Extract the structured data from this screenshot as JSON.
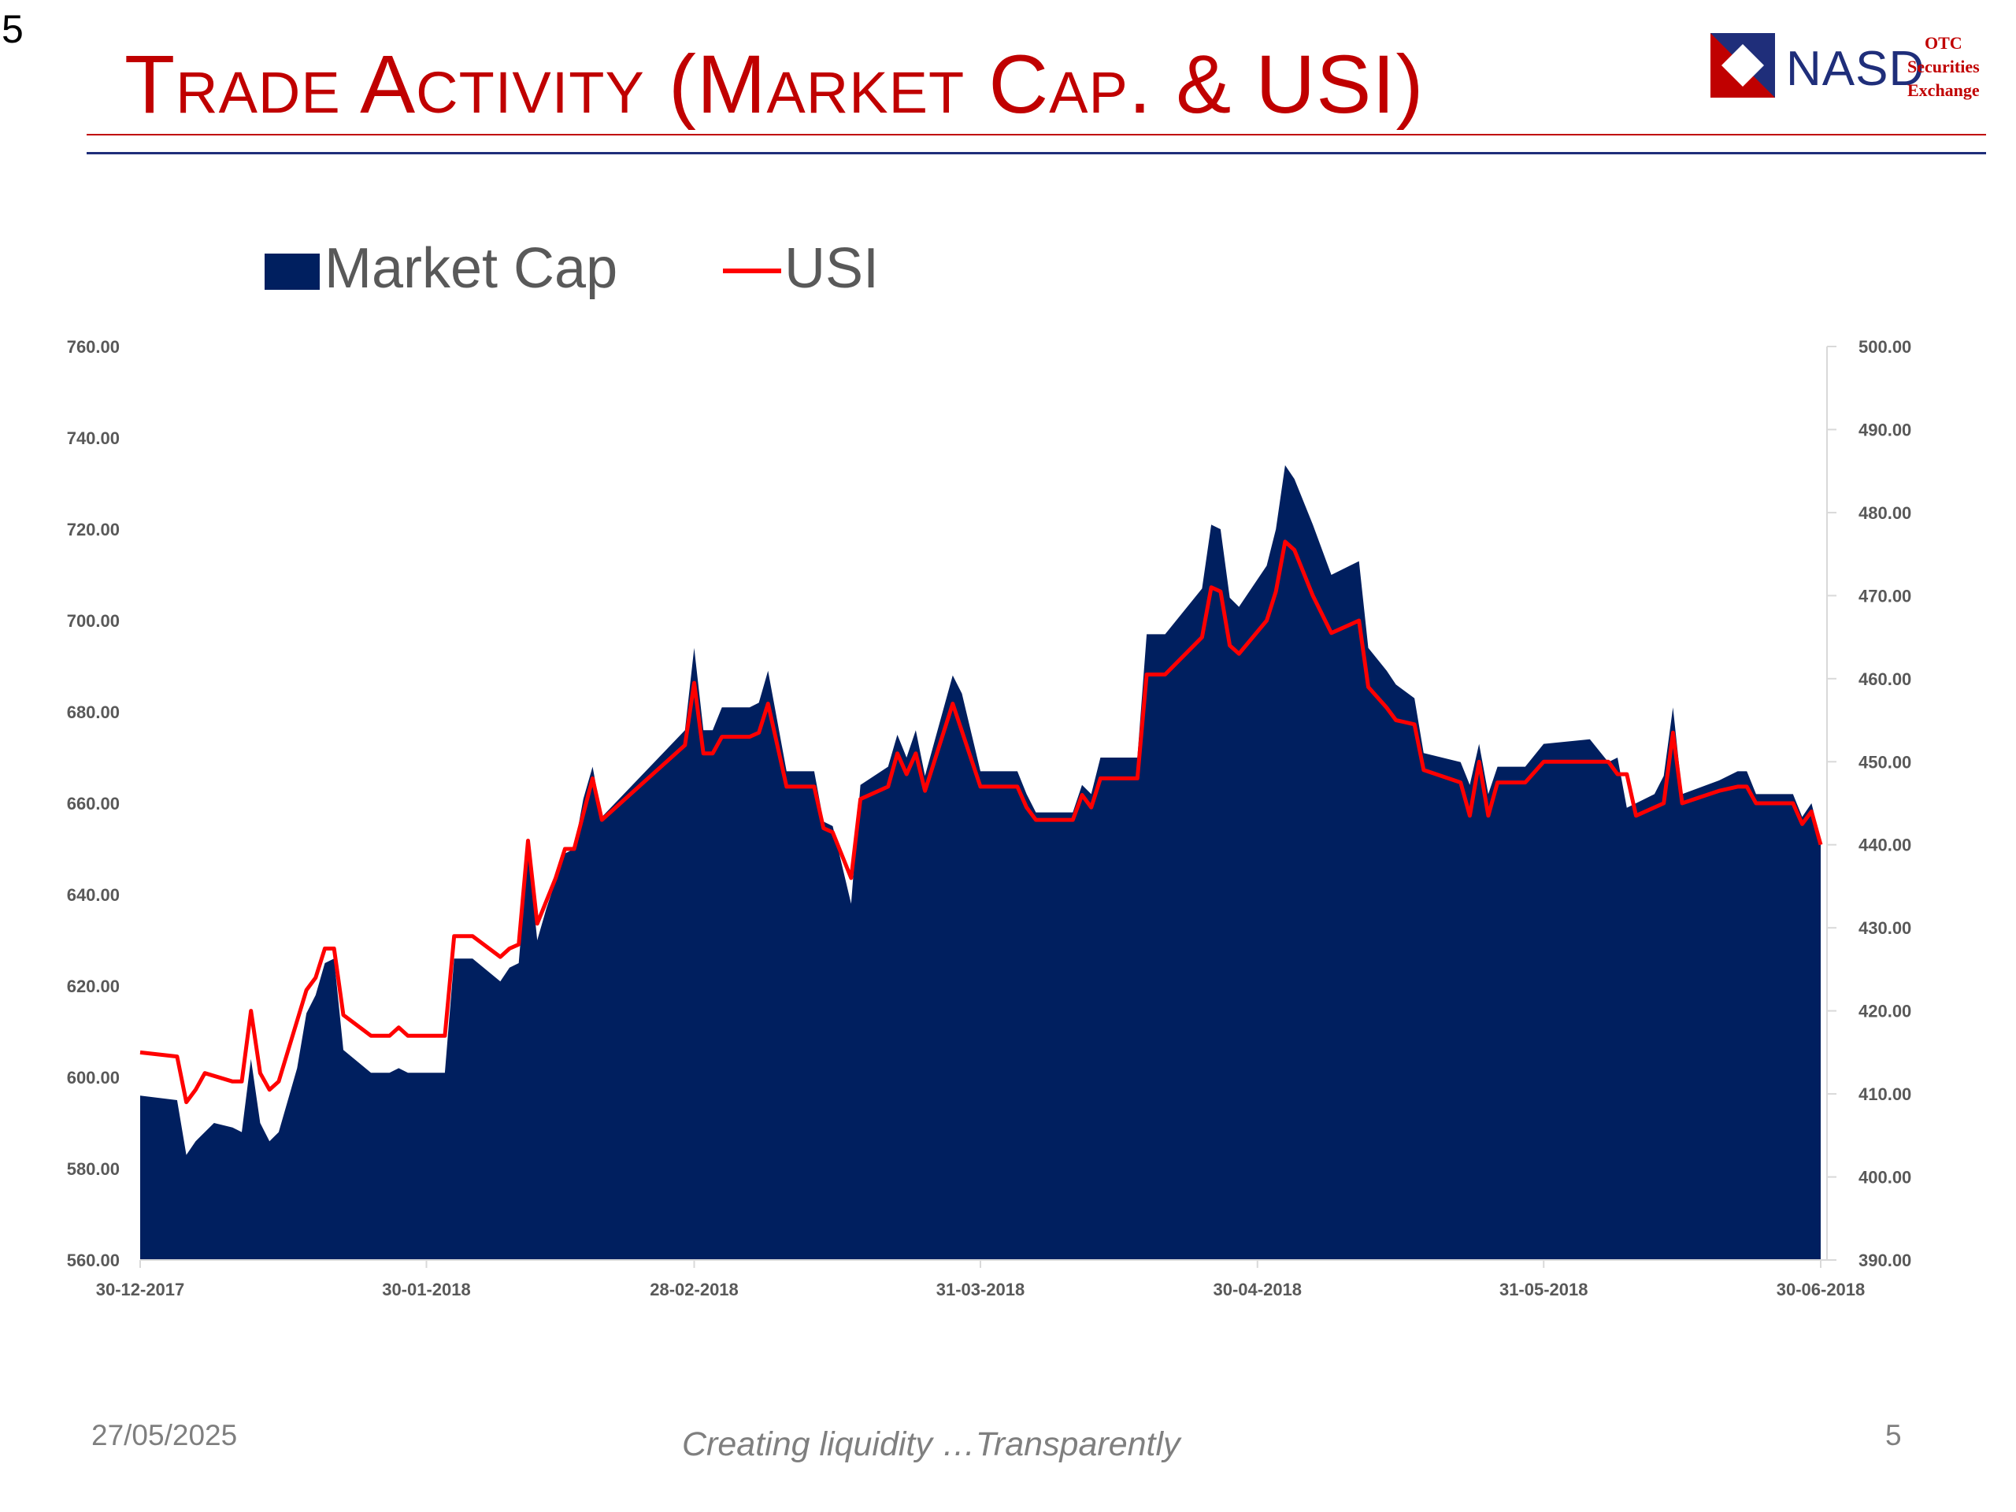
{
  "slide": {
    "corner_number": "5",
    "title": "Trade Activity (Market Cap. & USI)",
    "footer_date": "27/05/2025",
    "footer_tagline": "Creating liquidity …Transparently",
    "footer_page": "5"
  },
  "logo": {
    "name": "NASD",
    "line1": "OTC",
    "line2": "Securities",
    "line3": "Exchange"
  },
  "colors": {
    "title": "#c00000",
    "market_cap_fill": "#001f5f",
    "usi_line": "#ff0000",
    "tick_text": "#595959"
  },
  "chart_data": {
    "type": "area",
    "legend": [
      {
        "name": "Market Cap",
        "type": "area"
      },
      {
        "name": "USI",
        "type": "line"
      }
    ],
    "legend_position": "top-left",
    "grid": false,
    "x_tick_labels": [
      "30-12-2017",
      "30-01-2018",
      "28-02-2018",
      "31-03-2018",
      "30-04-2018",
      "31-05-2018",
      "30-06-2018"
    ],
    "y_left": {
      "min": 560,
      "max": 760,
      "step": 20,
      "tick_labels": [
        "560.00",
        "580.00",
        "600.00",
        "620.00",
        "640.00",
        "660.00",
        "680.00",
        "700.00",
        "720.00",
        "740.00",
        "760.00"
      ]
    },
    "y_right": {
      "min": 390,
      "max": 500,
      "step": 10,
      "tick_labels": [
        "390.00",
        "400.00",
        "410.00",
        "420.00",
        "430.00",
        "440.00",
        "450.00",
        "460.00",
        "470.00",
        "480.00",
        "490.00",
        "500.00"
      ]
    },
    "x_start": "2017-12-30",
    "x_end": "2018-06-30",
    "series": [
      {
        "name": "Market Cap",
        "axis": "left",
        "points": [
          [
            "2017-12-30",
            596
          ],
          [
            "2018-01-03",
            595
          ],
          [
            "2018-01-04",
            583
          ],
          [
            "2018-01-05",
            586
          ],
          [
            "2018-01-07",
            590
          ],
          [
            "2018-01-09",
            589
          ],
          [
            "2018-01-10",
            588
          ],
          [
            "2018-01-11",
            604
          ],
          [
            "2018-01-12",
            590
          ],
          [
            "2018-01-13",
            586
          ],
          [
            "2018-01-14",
            588
          ],
          [
            "2018-01-16",
            602
          ],
          [
            "2018-01-17",
            614
          ],
          [
            "2018-01-18",
            618
          ],
          [
            "2018-01-19",
            625
          ],
          [
            "2018-01-20",
            626
          ],
          [
            "2018-01-21",
            606
          ],
          [
            "2018-01-24",
            601
          ],
          [
            "2018-01-26",
            601
          ],
          [
            "2018-01-27",
            602
          ],
          [
            "2018-01-28",
            601
          ],
          [
            "2018-01-30",
            601
          ],
          [
            "2018-02-01",
            601
          ],
          [
            "2018-02-02",
            626
          ],
          [
            "2018-02-04",
            626
          ],
          [
            "2018-02-07",
            621
          ],
          [
            "2018-02-08",
            624
          ],
          [
            "2018-02-09",
            625
          ],
          [
            "2018-02-10",
            650
          ],
          [
            "2018-02-11",
            630
          ],
          [
            "2018-02-12",
            637
          ],
          [
            "2018-02-14",
            649
          ],
          [
            "2018-02-15",
            650
          ],
          [
            "2018-02-16",
            661
          ],
          [
            "2018-02-17",
            668
          ],
          [
            "2018-02-18",
            657
          ],
          [
            "2018-02-27",
            676
          ],
          [
            "2018-02-28",
            694
          ],
          [
            "2018-03-01",
            676
          ],
          [
            "2018-03-02",
            676
          ],
          [
            "2018-03-03",
            681
          ],
          [
            "2018-03-06",
            681
          ],
          [
            "2018-03-07",
            682
          ],
          [
            "2018-03-08",
            689
          ],
          [
            "2018-03-10",
            667
          ],
          [
            "2018-03-13",
            667
          ],
          [
            "2018-03-14",
            656
          ],
          [
            "2018-03-15",
            655
          ],
          [
            "2018-03-17",
            638
          ],
          [
            "2018-03-18",
            664
          ],
          [
            "2018-03-21",
            668
          ],
          [
            "2018-03-22",
            675
          ],
          [
            "2018-03-23",
            670
          ],
          [
            "2018-03-24",
            676
          ],
          [
            "2018-03-25",
            666
          ],
          [
            "2018-03-28",
            688
          ],
          [
            "2018-03-29",
            684
          ],
          [
            "2018-03-31",
            667
          ],
          [
            "2018-04-04",
            667
          ],
          [
            "2018-04-05",
            662
          ],
          [
            "2018-04-06",
            658
          ],
          [
            "2018-04-10",
            658
          ],
          [
            "2018-04-11",
            664
          ],
          [
            "2018-04-12",
            662
          ],
          [
            "2018-04-13",
            670
          ],
          [
            "2018-04-17",
            670
          ],
          [
            "2018-04-18",
            697
          ],
          [
            "2018-04-20",
            697
          ],
          [
            "2018-04-24",
            707
          ],
          [
            "2018-04-25",
            721
          ],
          [
            "2018-04-26",
            720
          ],
          [
            "2018-04-27",
            705
          ],
          [
            "2018-04-28",
            703
          ],
          [
            "2018-05-01",
            712
          ],
          [
            "2018-05-02",
            720
          ],
          [
            "2018-05-03",
            734
          ],
          [
            "2018-05-04",
            731
          ],
          [
            "2018-05-06",
            721
          ],
          [
            "2018-05-08",
            710
          ],
          [
            "2018-05-10",
            712
          ],
          [
            "2018-05-11",
            713
          ],
          [
            "2018-05-12",
            694
          ],
          [
            "2018-05-14",
            689
          ],
          [
            "2018-05-15",
            686
          ],
          [
            "2018-05-17",
            683
          ],
          [
            "2018-05-18",
            671
          ],
          [
            "2018-05-22",
            669
          ],
          [
            "2018-05-23",
            664
          ],
          [
            "2018-05-24",
            673
          ],
          [
            "2018-05-25",
            662
          ],
          [
            "2018-05-26",
            668
          ],
          [
            "2018-05-29",
            668
          ],
          [
            "2018-05-31",
            673
          ],
          [
            "2018-06-05",
            674
          ],
          [
            "2018-06-07",
            669
          ],
          [
            "2018-06-08",
            670
          ],
          [
            "2018-06-09",
            659
          ],
          [
            "2018-06-12",
            662
          ],
          [
            "2018-06-13",
            666
          ],
          [
            "2018-06-14",
            681
          ],
          [
            "2018-06-15",
            662
          ],
          [
            "2018-06-19",
            665
          ],
          [
            "2018-06-21",
            667
          ],
          [
            "2018-06-22",
            667
          ],
          [
            "2018-06-23",
            662
          ],
          [
            "2018-06-27",
            662
          ],
          [
            "2018-06-28",
            657
          ],
          [
            "2018-06-29",
            660
          ],
          [
            "2018-06-30",
            652
          ]
        ]
      },
      {
        "name": "USI",
        "axis": "right",
        "points": [
          [
            "2017-12-30",
            415
          ],
          [
            "2018-01-03",
            414.5
          ],
          [
            "2018-01-04",
            409
          ],
          [
            "2018-01-05",
            410.5
          ],
          [
            "2018-01-06",
            412.5
          ],
          [
            "2018-01-09",
            411.5
          ],
          [
            "2018-01-10",
            411.5
          ],
          [
            "2018-01-11",
            420
          ],
          [
            "2018-01-12",
            412.5
          ],
          [
            "2018-01-13",
            410.5
          ],
          [
            "2018-01-14",
            411.5
          ],
          [
            "2018-01-17",
            422.5
          ],
          [
            "2018-01-18",
            424
          ],
          [
            "2018-01-19",
            427.5
          ],
          [
            "2018-01-20",
            427.5
          ],
          [
            "2018-01-21",
            419.5
          ],
          [
            "2018-01-24",
            417
          ],
          [
            "2018-01-26",
            417
          ],
          [
            "2018-01-27",
            418
          ],
          [
            "2018-01-28",
            417
          ],
          [
            "2018-02-01",
            417
          ],
          [
            "2018-02-02",
            429
          ],
          [
            "2018-02-04",
            429
          ],
          [
            "2018-02-07",
            426.5
          ],
          [
            "2018-02-08",
            427.5
          ],
          [
            "2018-02-09",
            428
          ],
          [
            "2018-02-10",
            440.5
          ],
          [
            "2018-02-11",
            430.5
          ],
          [
            "2018-02-13",
            436
          ],
          [
            "2018-02-14",
            439.5
          ],
          [
            "2018-02-15",
            439.5
          ],
          [
            "2018-02-17",
            448
          ],
          [
            "2018-02-18",
            443
          ],
          [
            "2018-02-27",
            452
          ],
          [
            "2018-02-28",
            459.5
          ],
          [
            "2018-03-01",
            451
          ],
          [
            "2018-03-02",
            451
          ],
          [
            "2018-03-03",
            453
          ],
          [
            "2018-03-06",
            453
          ],
          [
            "2018-03-07",
            453.5
          ],
          [
            "2018-03-08",
            457
          ],
          [
            "2018-03-10",
            447
          ],
          [
            "2018-03-13",
            447
          ],
          [
            "2018-03-14",
            442
          ],
          [
            "2018-03-15",
            441.5
          ],
          [
            "2018-03-17",
            436
          ],
          [
            "2018-03-18",
            445.5
          ],
          [
            "2018-03-21",
            447
          ],
          [
            "2018-03-22",
            451
          ],
          [
            "2018-03-23",
            448.5
          ],
          [
            "2018-03-24",
            451
          ],
          [
            "2018-03-25",
            446.5
          ],
          [
            "2018-03-28",
            457
          ],
          [
            "2018-03-31",
            447
          ],
          [
            "2018-04-04",
            447
          ],
          [
            "2018-04-05",
            444.5
          ],
          [
            "2018-04-06",
            443
          ],
          [
            "2018-04-10",
            443
          ],
          [
            "2018-04-11",
            446
          ],
          [
            "2018-04-12",
            444.5
          ],
          [
            "2018-04-13",
            448
          ],
          [
            "2018-04-17",
            448
          ],
          [
            "2018-04-18",
            460.5
          ],
          [
            "2018-04-20",
            460.5
          ],
          [
            "2018-04-24",
            465
          ],
          [
            "2018-04-25",
            471
          ],
          [
            "2018-04-26",
            470.5
          ],
          [
            "2018-04-27",
            464
          ],
          [
            "2018-04-28",
            463
          ],
          [
            "2018-05-01",
            467
          ],
          [
            "2018-05-02",
            470.5
          ],
          [
            "2018-05-03",
            476.5
          ],
          [
            "2018-05-04",
            475.5
          ],
          [
            "2018-05-06",
            470
          ],
          [
            "2018-05-08",
            465.5
          ],
          [
            "2018-05-10",
            466.5
          ],
          [
            "2018-05-11",
            467
          ],
          [
            "2018-05-12",
            459
          ],
          [
            "2018-05-14",
            456.5
          ],
          [
            "2018-05-15",
            455
          ],
          [
            "2018-05-17",
            454.5
          ],
          [
            "2018-05-18",
            449
          ],
          [
            "2018-05-22",
            447.5
          ],
          [
            "2018-05-23",
            443.5
          ],
          [
            "2018-05-24",
            450
          ],
          [
            "2018-05-25",
            443.5
          ],
          [
            "2018-05-26",
            447.5
          ],
          [
            "2018-05-29",
            447.5
          ],
          [
            "2018-05-31",
            450
          ],
          [
            "2018-06-05",
            450
          ],
          [
            "2018-06-07",
            450
          ],
          [
            "2018-06-08",
            448.5
          ],
          [
            "2018-06-09",
            448.5
          ],
          [
            "2018-06-10",
            443.5
          ],
          [
            "2018-06-13",
            445
          ],
          [
            "2018-06-14",
            453.5
          ],
          [
            "2018-06-15",
            445
          ],
          [
            "2018-06-19",
            446.5
          ],
          [
            "2018-06-21",
            447
          ],
          [
            "2018-06-22",
            447
          ],
          [
            "2018-06-23",
            445
          ],
          [
            "2018-06-27",
            445
          ],
          [
            "2018-06-28",
            442.5
          ],
          [
            "2018-06-29",
            444
          ],
          [
            "2018-06-30",
            440
          ]
        ]
      }
    ]
  }
}
